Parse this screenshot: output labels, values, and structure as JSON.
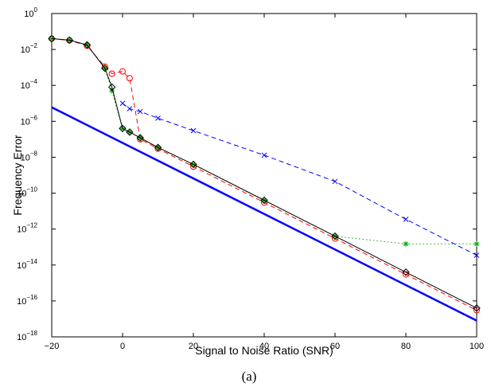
{
  "caption": "(a)",
  "chart_data": {
    "type": "line",
    "title": "",
    "xlabel": "Signal to Noise Ratio (SNR)",
    "ylabel": "Frequency Error",
    "xlim": [
      -20,
      100
    ],
    "ylim_log10": [
      -18,
      0
    ],
    "yscale": "log",
    "grid": false,
    "x_ticks": [
      -20,
      0,
      20,
      40,
      60,
      80,
      100
    ],
    "x_tick_labels": [
      "−20",
      "0",
      "20",
      "40",
      "60",
      "80",
      "100"
    ],
    "y_ticks_log10": [
      -18,
      -16,
      -14,
      -12,
      -10,
      -8,
      -6,
      -4,
      -2,
      0
    ],
    "y_tick_labels": [
      {
        "base": "10",
        "exp": "−18"
      },
      {
        "base": "10",
        "exp": "−16"
      },
      {
        "base": "10",
        "exp": "−14"
      },
      {
        "base": "10",
        "exp": "−12"
      },
      {
        "base": "10",
        "exp": "−10"
      },
      {
        "base": "10",
        "exp": "−8"
      },
      {
        "base": "10",
        "exp": "−6"
      },
      {
        "base": "10",
        "exp": "−4"
      },
      {
        "base": "10",
        "exp": "−2"
      },
      {
        "base": "10",
        "exp": "0"
      }
    ],
    "series": [
      {
        "color": "#0000ff",
        "line": "solid",
        "width": 2.5,
        "marker": "none",
        "x": [
          -20,
          100
        ],
        "y": [
          6e-06,
          8e-18
        ]
      },
      {
        "color": "#0000ff",
        "line": "dashed",
        "width": 1,
        "marker": "x",
        "x": [
          0,
          2,
          5,
          10,
          20,
          40,
          60,
          80,
          100
        ],
        "y": [
          1e-05,
          5e-06,
          3.5e-06,
          1.5e-06,
          3e-07,
          1.3e-08,
          4.5e-10,
          3.5e-12,
          3.5e-14
        ]
      },
      {
        "color": "#ff0000",
        "line": "dashed",
        "width": 1,
        "marker": "circle",
        "x": [
          -20,
          -15,
          -10,
          -5,
          -3,
          0,
          2,
          5,
          10,
          20,
          40,
          60,
          80,
          100
        ],
        "y": [
          0.04,
          0.032,
          0.016,
          0.0011,
          0.00045,
          0.0006,
          0.00025,
          1e-07,
          3e-08,
          3e-09,
          3e-11,
          3e-13,
          3e-15,
          3e-17
        ]
      },
      {
        "color": "#00aa00",
        "line": "dotted",
        "width": 1,
        "marker": "star",
        "x": [
          -20,
          -15,
          -10,
          -5,
          -3,
          0,
          2,
          5,
          10,
          20,
          40,
          60,
          80,
          100
        ],
        "y": [
          0.04,
          0.033,
          0.018,
          0.0009,
          5e-05,
          4e-07,
          2.5e-07,
          1.2e-07,
          3.5e-08,
          4e-09,
          4e-11,
          4e-13,
          1.5e-13,
          1.5e-13
        ]
      },
      {
        "color": "#000000",
        "line": "solid",
        "width": 1,
        "marker": "diamond",
        "x": [
          -20,
          -15,
          -10,
          -5,
          -3,
          0,
          2,
          5,
          10,
          20,
          40,
          60,
          80,
          100
        ],
        "y": [
          0.04,
          0.033,
          0.018,
          0.0009,
          8e-05,
          4e-07,
          2.5e-07,
          1.2e-07,
          3.5e-08,
          4e-09,
          4e-11,
          4e-13,
          4e-15,
          4e-17
        ]
      }
    ]
  }
}
